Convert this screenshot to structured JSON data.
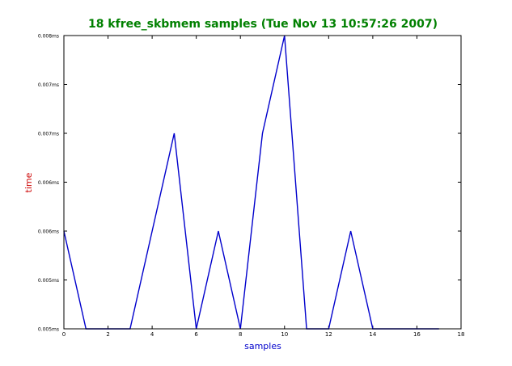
{
  "chart_data": {
    "type": "line",
    "title": "18 kfree_skbmem samples (Tue Nov 13 10:57:26 2007)",
    "xlabel": "samples",
    "ylabel": "time",
    "xlim": [
      0,
      18
    ],
    "ylim": [
      0.0045,
      0.0075
    ],
    "x_ticks": [
      0,
      2,
      4,
      6,
      8,
      10,
      12,
      14,
      16,
      18
    ],
    "x_tick_labels": [
      "0",
      "2",
      "4",
      "6",
      "8",
      "10",
      "12",
      "14",
      "16",
      "18"
    ],
    "y_ticks": [
      0.0045,
      0.005,
      0.0055,
      0.006,
      0.0065,
      0.007,
      0.0075
    ],
    "y_tick_labels": [
      "0.005ms",
      "0.005ms",
      "0.006ms",
      "0.006ms",
      "0.007ms",
      "0.007ms",
      "0.008ms"
    ],
    "series": [
      {
        "x": [
          0,
          1,
          2,
          3,
          4,
          5,
          6,
          7,
          8,
          9,
          10,
          11,
          12,
          13,
          14,
          15,
          16,
          17
        ],
        "values": [
          0.0055,
          0.0045,
          0.0045,
          0.0045,
          0.0055,
          0.0065,
          0.0045,
          0.0055,
          0.0045,
          0.0065,
          0.0075,
          0.0045,
          0.0045,
          0.0055,
          0.0045,
          0.0045,
          0.0045,
          0.0045
        ],
        "color": "#0000cc"
      }
    ],
    "grid": false,
    "colors": {
      "title": "#008000",
      "xlabel": "#0000cc",
      "ylabel": "#cc0000",
      "axes": "#000000",
      "ticks": "#000000"
    }
  }
}
